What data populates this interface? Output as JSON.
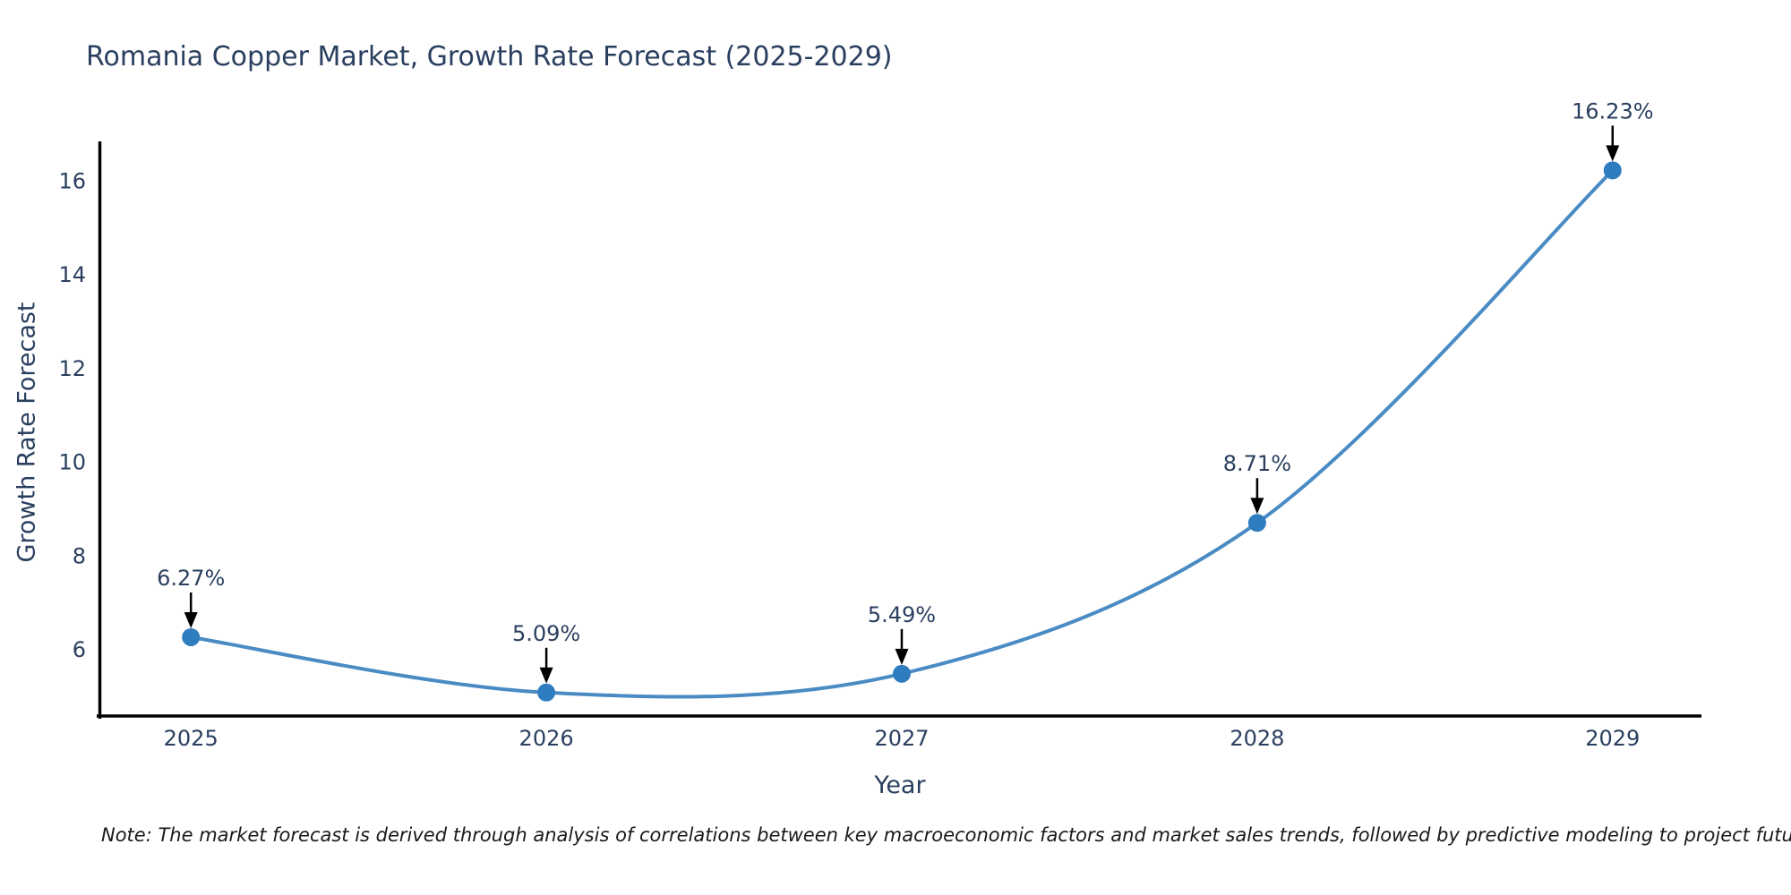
{
  "title": "Romania Copper Market, Growth Rate Forecast (2025-2029)",
  "footnote": "Note: The market forecast is derived through analysis of correlations between key macroeconomic factors and market sales trends, followed by predictive modeling to project future sales",
  "chart_data": {
    "type": "line",
    "title": "Romania Copper Market, Growth Rate Forecast (2025-2029)",
    "xlabel": "Year",
    "ylabel": "Growth Rate Forecast",
    "categories": [
      2025,
      2026,
      2027,
      2028,
      2029
    ],
    "series": [
      {
        "name": "Growth Rate Forecast",
        "values": [
          6.27,
          5.09,
          5.49,
          8.71,
          16.23
        ],
        "point_labels": [
          "6.27%",
          "5.09%",
          "5.49%",
          "8.71%",
          "16.23%"
        ]
      }
    ],
    "line_shape": "spline",
    "markers": true,
    "annotations_arrows": true,
    "grid": false,
    "legend_position": "none",
    "xlim": [
      2024.74,
      2029.25
    ],
    "ylim": [
      4.57,
      16.81
    ],
    "xticks": [
      2025,
      2026,
      2027,
      2028,
      2029
    ],
    "yticks": [
      6,
      8,
      10,
      12,
      14,
      16
    ],
    "colors": {
      "line": "#4a8bc4",
      "marker": "#2f7cbe",
      "axis_line": "#000000",
      "tick_text": "#2a3f5f",
      "annotation_text": "#2a3f5f",
      "annotation_arrow": "#000000",
      "title_text": "#2a3f5f",
      "background": "#ffffff"
    }
  }
}
